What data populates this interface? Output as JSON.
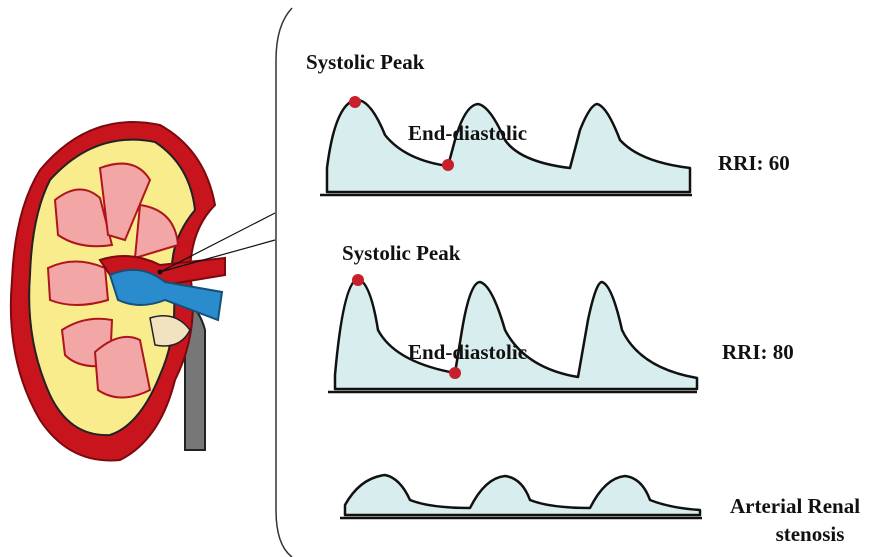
{
  "panels": [
    {
      "peak_label": "Systolic Peak",
      "diastolic_label": "End-diastolic",
      "index_label": "RRI: 60"
    },
    {
      "peak_label": "Systolic Peak",
      "diastolic_label": "End-diastolic",
      "index_label": "RRI: 80"
    },
    {
      "label_lines": [
        "Arterial Renal",
        "stenosis"
      ]
    }
  ]
}
